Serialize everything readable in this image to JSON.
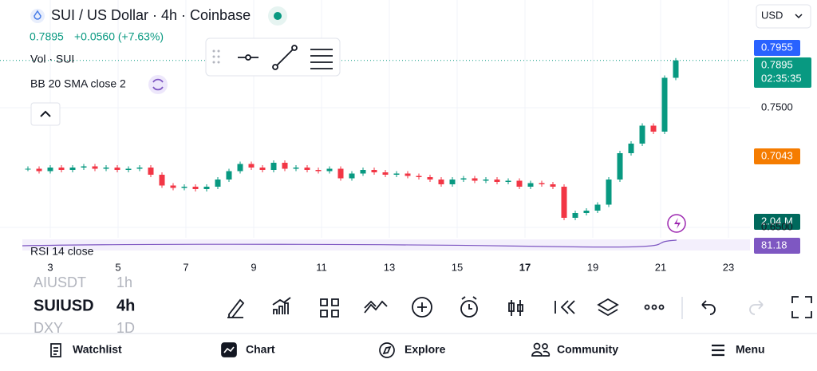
{
  "header": {
    "symbol": "SUI / US Dollar · 4h · Coinbase",
    "last": "0.7895",
    "change": "+0.0560 (+7.63%)",
    "currency": "USD"
  },
  "indicators": [
    "Vol · SUI",
    "BB 20 SMA close 2",
    "RSI 14 close"
  ],
  "price_labels": {
    "high": "0.7955",
    "last": "0.7895",
    "countdown": "02:35:35",
    "sma": "0.7043",
    "volume": "2.04 M",
    "rsi": "81.18"
  },
  "chart_data": {
    "type": "candlestick",
    "values": [
      0.699,
      0.697,
      0.7,
      0.698,
      0.7,
      0.701,
      0.699,
      0.7,
      0.698,
      0.699,
      0.7,
      0.694,
      0.685,
      0.683,
      0.684,
      0.682,
      0.684,
      0.69,
      0.697,
      0.703,
      0.7,
      0.698,
      0.704,
      0.699,
      0.7,
      0.698,
      0.697,
      0.699,
      0.691,
      0.695,
      0.698,
      0.696,
      0.694,
      0.695,
      0.693,
      0.692,
      0.69,
      0.686,
      0.69,
      0.691,
      0.689,
      0.69,
      0.688,
      0.689,
      0.684,
      0.687,
      0.686,
      0.684,
      0.658,
      0.662,
      0.664,
      0.669,
      0.69,
      0.712,
      0.72,
      0.735,
      0.73,
      0.775,
      0.7895
    ],
    "up_color": "#089981",
    "down_color": "#f23645",
    "ylim": [
      0.64,
      0.84
    ],
    "yticks": [
      {
        "value": 0.75,
        "label": "0.7500"
      },
      {
        "value": 0.65,
        "label": "0.6500"
      }
    ],
    "xticks": [
      3,
      5,
      7,
      9,
      11,
      13,
      15,
      17,
      19,
      21,
      23
    ]
  },
  "watchlist": [
    {
      "symbol": "AIUSDT",
      "interval": "1h"
    },
    {
      "symbol": "SUIUSD",
      "interval": "4h"
    },
    {
      "symbol": "DXY",
      "interval": "1D"
    }
  ],
  "nav": [
    "Watchlist",
    "Chart",
    "Explore",
    "Community",
    "Menu"
  ]
}
